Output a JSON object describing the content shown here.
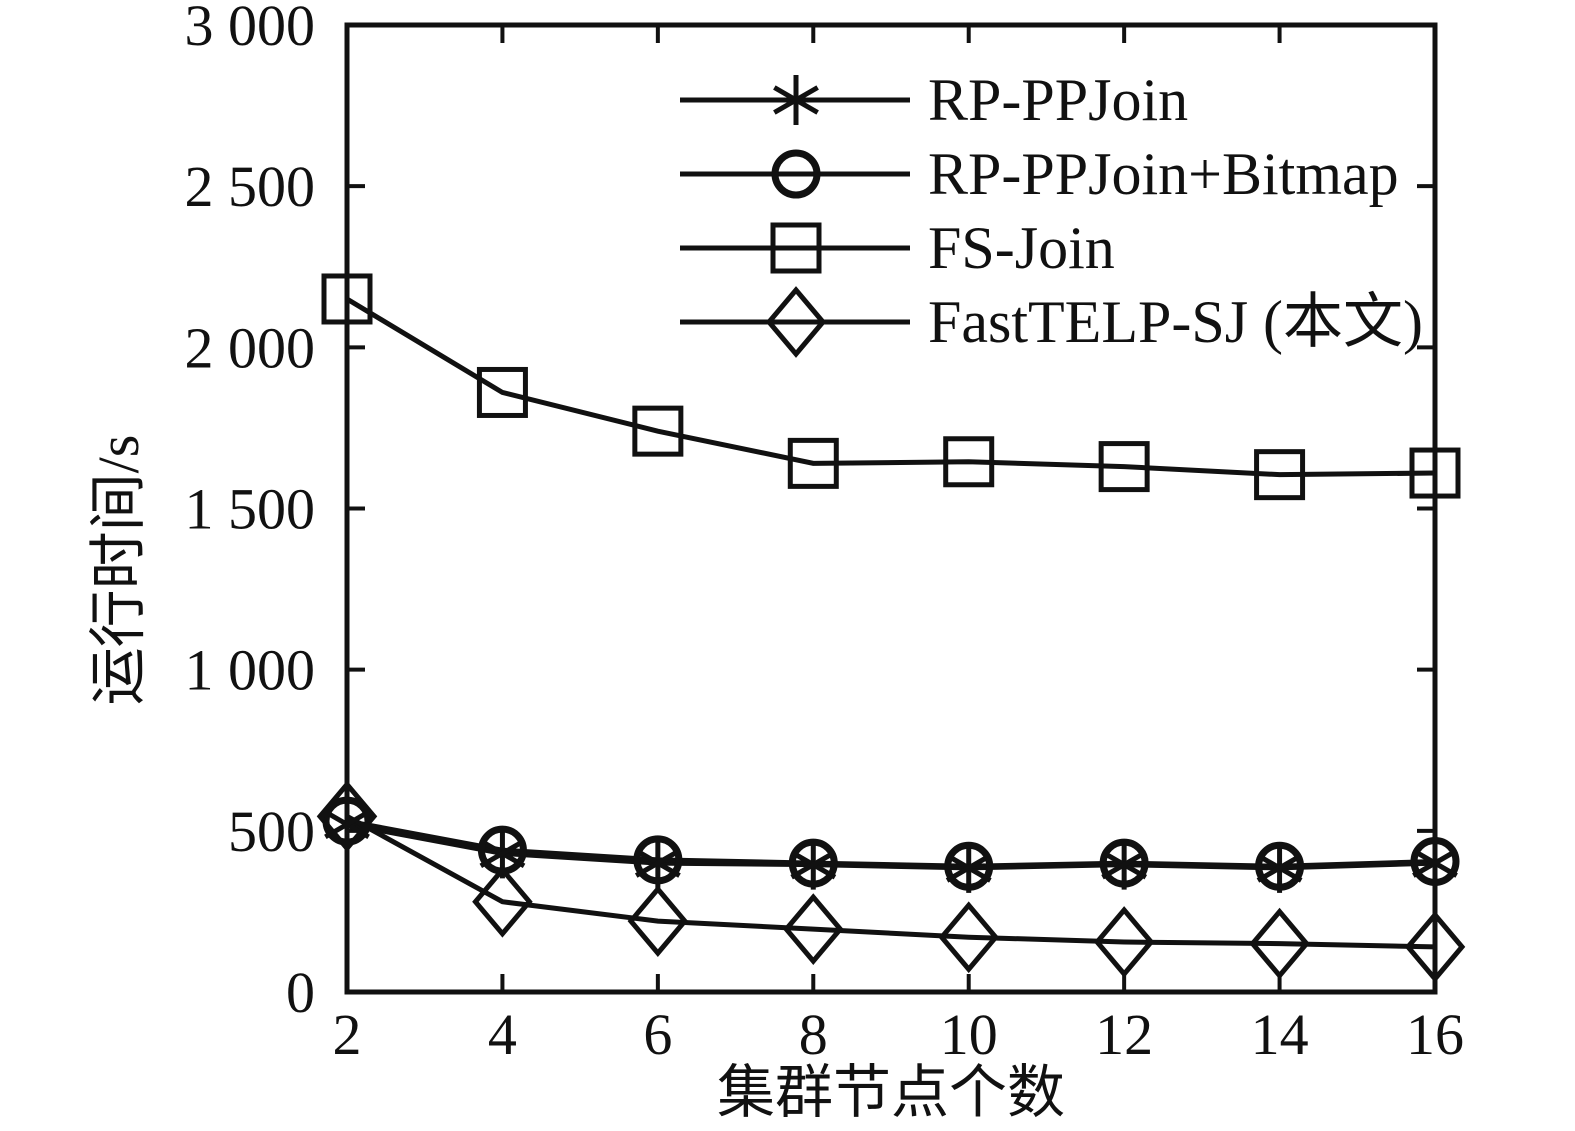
{
  "chart_data": {
    "type": "line",
    "title": "",
    "xlabel": "集群节点个数",
    "ylabel": "运行时间/s",
    "x": [
      2,
      4,
      6,
      8,
      10,
      12,
      14,
      16
    ],
    "xlim": [
      2,
      16
    ],
    "ylim": [
      0,
      3000
    ],
    "xtick_labels": [
      "2",
      "4",
      "6",
      "8",
      "10",
      "12",
      "14",
      "16"
    ],
    "ytick_values": [
      0,
      500,
      1000,
      1500,
      2000,
      2500,
      3000
    ],
    "ytick_labels": [
      "0",
      "500",
      "1 000",
      "1 500",
      "2 000",
      "2 500",
      "3 000"
    ],
    "grid": false,
    "box": true,
    "legend_position": "inside-top-center",
    "axis_color": "#111111",
    "background": "#ffffff",
    "series": [
      {
        "name": "RP-PPJoin",
        "marker": "asterisk",
        "color": "#111111",
        "values": [
          520,
          430,
          400,
          395,
          385,
          395,
          385,
          400
        ]
      },
      {
        "name": "RP-PPJoin+Bitmap",
        "marker": "circle",
        "color": "#111111",
        "values": [
          530,
          440,
          410,
          400,
          390,
          400,
          390,
          405
        ]
      },
      {
        "name": "FS-Join",
        "marker": "square",
        "color": "#111111",
        "values": [
          2150,
          1860,
          1740,
          1640,
          1645,
          1630,
          1605,
          1610
        ]
      },
      {
        "name": "FastTELP-SJ (本文)",
        "marker": "diamond",
        "color": "#111111",
        "values": [
          545,
          280,
          220,
          195,
          170,
          155,
          150,
          140
        ]
      }
    ]
  }
}
